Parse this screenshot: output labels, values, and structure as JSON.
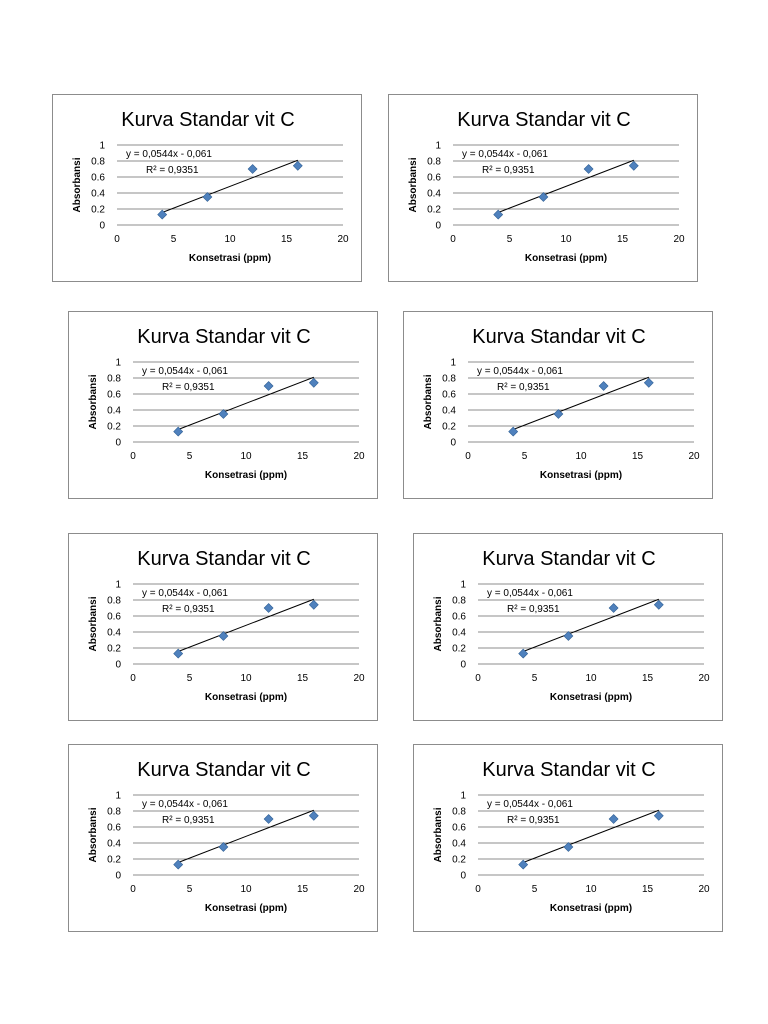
{
  "page": {
    "background": "#ffffff"
  },
  "colors": {
    "marker": "#4f81bd",
    "marker_stroke": "#2f5f94",
    "trendline": "#000000",
    "gridline": "#8c8c8c",
    "frame": "#8c8c8c"
  },
  "chart_data": [
    {
      "type": "scatter",
      "title": "Kurva Standar vit C",
      "xlabel": "Konsetrasi (ppm)",
      "ylabel": "Absorbansi",
      "x": [
        4,
        8,
        12,
        16
      ],
      "y": [
        0.13,
        0.35,
        0.7,
        0.74
      ],
      "xlim": [
        0,
        20
      ],
      "ylim": [
        0,
        1
      ],
      "xticks": [
        "0",
        "5",
        "10",
        "15",
        "20"
      ],
      "yticks": [
        "0",
        "0.2",
        "0.4",
        "0.6",
        "0.8",
        "1"
      ],
      "trendline": {
        "slope": 0.0544,
        "intercept": -0.061,
        "x_range": [
          4,
          16
        ]
      },
      "annotations": [
        "y = 0,0544x - 0,061",
        "R² = 0,9351"
      ],
      "grid": true
    },
    {
      "type": "scatter",
      "title": "Kurva Standar vit C",
      "xlabel": "Konsetrasi (ppm)",
      "ylabel": "Absorbansi",
      "x": [
        4,
        8,
        12,
        16
      ],
      "y": [
        0.13,
        0.35,
        0.7,
        0.74
      ],
      "xlim": [
        0,
        20
      ],
      "ylim": [
        0,
        1
      ],
      "xticks": [
        "0",
        "5",
        "10",
        "15",
        "20"
      ],
      "yticks": [
        "0",
        "0.2",
        "0.4",
        "0.6",
        "0.8",
        "1"
      ],
      "trendline": {
        "slope": 0.0544,
        "intercept": -0.061,
        "x_range": [
          4,
          16
        ]
      },
      "annotations": [
        "y = 0,0544x - 0,061",
        "R² = 0,9351"
      ],
      "grid": true
    },
    {
      "type": "scatter",
      "title": "Kurva Standar vit C",
      "xlabel": "Konsetrasi (ppm)",
      "ylabel": "Absorbansi",
      "x": [
        4,
        8,
        12,
        16
      ],
      "y": [
        0.13,
        0.35,
        0.7,
        0.74
      ],
      "xlim": [
        0,
        20
      ],
      "ylim": [
        0,
        1
      ],
      "xticks": [
        "0",
        "5",
        "10",
        "15",
        "20"
      ],
      "yticks": [
        "0",
        "0.2",
        "0.4",
        "0.6",
        "0.8",
        "1"
      ],
      "trendline": {
        "slope": 0.0544,
        "intercept": -0.061,
        "x_range": [
          4,
          16
        ]
      },
      "annotations": [
        "y = 0,0544x - 0,061",
        "R² = 0,9351"
      ],
      "grid": true
    },
    {
      "type": "scatter",
      "title": "Kurva Standar vit C",
      "xlabel": "Konsetrasi (ppm)",
      "ylabel": "Absorbansi",
      "x": [
        4,
        8,
        12,
        16
      ],
      "y": [
        0.13,
        0.35,
        0.7,
        0.74
      ],
      "xlim": [
        0,
        20
      ],
      "ylim": [
        0,
        1
      ],
      "xticks": [
        "0",
        "5",
        "10",
        "15",
        "20"
      ],
      "yticks": [
        "0",
        "0.2",
        "0.4",
        "0.6",
        "0.8",
        "1"
      ],
      "trendline": {
        "slope": 0.0544,
        "intercept": -0.061,
        "x_range": [
          4,
          16
        ]
      },
      "annotations": [
        "y = 0,0544x - 0,061",
        "R² = 0,9351"
      ],
      "grid": true
    },
    {
      "type": "scatter",
      "title": "Kurva Standar vit C",
      "xlabel": "Konsetrasi (ppm)",
      "ylabel": "Absorbansi",
      "x": [
        4,
        8,
        12,
        16
      ],
      "y": [
        0.13,
        0.35,
        0.7,
        0.74
      ],
      "xlim": [
        0,
        20
      ],
      "ylim": [
        0,
        1
      ],
      "xticks": [
        "0",
        "5",
        "10",
        "15",
        "20"
      ],
      "yticks": [
        "0",
        "0.2",
        "0.4",
        "0.6",
        "0.8",
        "1"
      ],
      "trendline": {
        "slope": 0.0544,
        "intercept": -0.061,
        "x_range": [
          4,
          16
        ]
      },
      "annotations": [
        "y = 0,0544x - 0,061",
        "R² = 0,9351"
      ],
      "grid": true
    },
    {
      "type": "scatter",
      "title": "Kurva Standar vit C",
      "xlabel": "Konsetrasi (ppm)",
      "ylabel": "Absorbansi",
      "x": [
        4,
        8,
        12,
        16
      ],
      "y": [
        0.13,
        0.35,
        0.7,
        0.74
      ],
      "xlim": [
        0,
        20
      ],
      "ylim": [
        0,
        1
      ],
      "xticks": [
        "0",
        "5",
        "10",
        "15",
        "20"
      ],
      "yticks": [
        "0",
        "0.2",
        "0.4",
        "0.6",
        "0.8",
        "1"
      ],
      "trendline": {
        "slope": 0.0544,
        "intercept": -0.061,
        "x_range": [
          4,
          16
        ]
      },
      "annotations": [
        "y = 0,0544x - 0,061",
        "R² = 0,9351"
      ],
      "grid": true
    },
    {
      "type": "scatter",
      "title": "Kurva Standar vit C",
      "xlabel": "Konsetrasi (ppm)",
      "ylabel": "Absorbansi",
      "x": [
        4,
        8,
        12,
        16
      ],
      "y": [
        0.13,
        0.35,
        0.7,
        0.74
      ],
      "xlim": [
        0,
        20
      ],
      "ylim": [
        0,
        1
      ],
      "xticks": [
        "0",
        "5",
        "10",
        "15",
        "20"
      ],
      "yticks": [
        "0",
        "0.2",
        "0.4",
        "0.6",
        "0.8",
        "1"
      ],
      "trendline": {
        "slope": 0.0544,
        "intercept": -0.061,
        "x_range": [
          4,
          16
        ]
      },
      "annotations": [
        "y = 0,0544x - 0,061",
        "R² = 0,9351"
      ],
      "grid": true
    },
    {
      "type": "scatter",
      "title": "Kurva Standar vit C",
      "xlabel": "Konsetrasi (ppm)",
      "ylabel": "Absorbansi",
      "x": [
        4,
        8,
        12,
        16
      ],
      "y": [
        0.13,
        0.35,
        0.7,
        0.74
      ],
      "xlim": [
        0,
        20
      ],
      "ylim": [
        0,
        1
      ],
      "xticks": [
        "0",
        "5",
        "10",
        "15",
        "20"
      ],
      "yticks": [
        "0",
        "0.2",
        "0.4",
        "0.6",
        "0.8",
        "1"
      ],
      "trendline": {
        "slope": 0.0544,
        "intercept": -0.061,
        "x_range": [
          4,
          16
        ]
      },
      "annotations": [
        "y = 0,0544x - 0,061",
        "R² = 0,9351"
      ],
      "grid": true
    }
  ]
}
